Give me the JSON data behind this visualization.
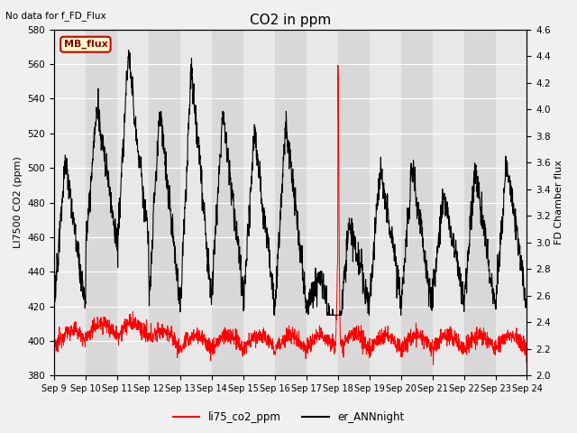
{
  "title": "CO2 in ppm",
  "ylabel_left": "LI7500 CO2 (ppm)",
  "ylabel_right": "FD Chamber flux",
  "ylim_left": [
    380,
    580
  ],
  "ylim_right": [
    2.0,
    4.6
  ],
  "no_data_text": "No data for f_FD_Flux",
  "mb_flux_label": "MB_flux",
  "legend_labels": [
    "li75_co2_ppm",
    "er_ANNnight"
  ],
  "xticklabels": [
    "Sep 9",
    "Sep 10",
    "Sep 11",
    "Sep 12",
    "Sep 13",
    "Sep 14",
    "Sep 15",
    "Sep 16",
    "Sep 17",
    "Sep 18",
    "Sep 19",
    "Sep 20",
    "Sep 21",
    "Sep 22",
    "Sep 23",
    "Sep 24"
  ],
  "fig_bg": "#f0f0f0",
  "plot_bg": "#e8e8e8",
  "band_colors": [
    "#e8e8e8",
    "#d8d8d8"
  ],
  "days": 15,
  "n_points": 2000
}
